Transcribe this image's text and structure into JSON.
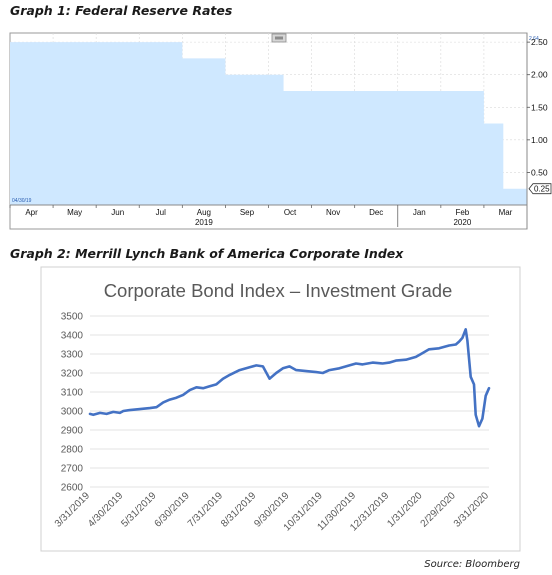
{
  "captions": {
    "graph1": "Graph 1: Federal Reserve Rates",
    "graph2": "Graph 2: Merrill Lynch Bank of America Corporate Index"
  },
  "source": "Source: Bloomberg",
  "chart_data": [
    {
      "type": "area",
      "title": "",
      "xlabel": "",
      "ylabel": "",
      "start_label": "04/30/19",
      "x_ticks": [
        "Apr",
        "May",
        "Jun",
        "Jul",
        "Aug",
        "Sep",
        "Oct",
        "Nov",
        "Dec",
        "Jan",
        "Feb",
        "Mar"
      ],
      "year_labels": [
        "2019",
        "2020"
      ],
      "ylim": [
        0,
        2.64
      ],
      "y_ticks": [
        "2.50",
        "2.00",
        "1.50",
        "1.00",
        "0.50"
      ],
      "y_top_label": "2.64",
      "last_value_label": "0.25",
      "steps": [
        {
          "x": 0.0,
          "y": 2.5
        },
        {
          "x": 4.0,
          "y": 2.25
        },
        {
          "x": 5.0,
          "y": 2.0
        },
        {
          "x": 6.35,
          "y": 1.75
        },
        {
          "x": 11.0,
          "y": 1.25
        },
        {
          "x": 11.45,
          "y": 0.25
        },
        {
          "x": 12.0,
          "y": 0.25
        }
      ],
      "fill_color": "#cfe8ff"
    },
    {
      "type": "line",
      "title": "Corporate Bond Index – Investment Grade",
      "xlabel": "",
      "ylabel": "",
      "ylim": [
        2600,
        3500
      ],
      "y_ticks": [
        3500,
        3400,
        3300,
        3200,
        3100,
        3000,
        2900,
        2800,
        2700,
        2600
      ],
      "x_ticks": [
        "3/31/2019",
        "4/30/2019",
        "5/31/2019",
        "6/30/2019",
        "7/31/2019",
        "8/31/2019",
        "9/30/2019",
        "10/31/2019",
        "11/30/2019",
        "12/31/2019",
        "1/31/2020",
        "2/29/2020",
        "3/31/2020"
      ],
      "line_color": "#4472c4",
      "series": [
        {
          "x": [
            0,
            0.1,
            0.3,
            0.5,
            0.7,
            0.9,
            1.0,
            1.2,
            1.5,
            1.8,
            2.0,
            2.2,
            2.4,
            2.6,
            2.8,
            3.0,
            3.2,
            3.4,
            3.6,
            3.8,
            4.0,
            4.2,
            4.5,
            4.8,
            5.0,
            5.2,
            5.4,
            5.6,
            5.8,
            6.0,
            6.2,
            6.5,
            6.8,
            7.0,
            7.2,
            7.5,
            7.8,
            8.0,
            8.2,
            8.5,
            8.8,
            9.0,
            9.2,
            9.5,
            9.8,
            10.0,
            10.2,
            10.5,
            10.8,
            11.0,
            11.1,
            11.2,
            11.3,
            11.35,
            11.45,
            11.55,
            11.6,
            11.7,
            11.8,
            11.9,
            12.0
          ],
          "values": [
            2985,
            2980,
            2990,
            2985,
            2995,
            2990,
            3000,
            3005,
            3010,
            3015,
            3020,
            3045,
            3060,
            3070,
            3085,
            3110,
            3125,
            3120,
            3130,
            3140,
            3170,
            3190,
            3215,
            3230,
            3240,
            3235,
            3170,
            3200,
            3225,
            3235,
            3215,
            3210,
            3205,
            3200,
            3215,
            3225,
            3240,
            3250,
            3245,
            3255,
            3250,
            3255,
            3265,
            3270,
            3285,
            3305,
            3325,
            3330,
            3345,
            3350,
            3365,
            3385,
            3430,
            3370,
            3180,
            3140,
            2980,
            2920,
            2960,
            3080,
            3120
          ]
        }
      ]
    }
  ]
}
